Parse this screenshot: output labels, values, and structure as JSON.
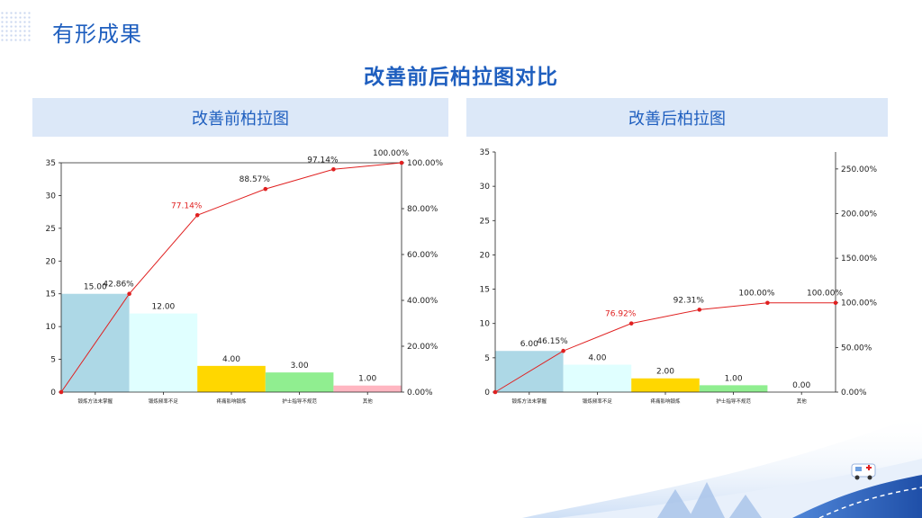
{
  "page": {
    "section_title": "有形成果",
    "main_title": "改善前后柏拉图对比"
  },
  "colors": {
    "accent": "#1f5fbf",
    "header_bg": "#dce8f8",
    "line": "#e02020",
    "highlight_label": "#e02020"
  },
  "chart_data": [
    {
      "type": "bar",
      "title": "改善前柏拉图",
      "categories": [
        "锻炼方法未掌握",
        "锻炼频率不足",
        "疼痛影响锻炼",
        "护士指导不规范",
        "其他"
      ],
      "values": [
        15,
        12,
        4,
        3,
        1
      ],
      "value_labels": [
        "15.00",
        "12.00",
        "4.00",
        "3.00",
        "1.00"
      ],
      "bar_colors": [
        "#add8e6",
        "#e0ffff",
        "#ffd700",
        "#90ee90",
        "#ffb6c1"
      ],
      "cumulative_percent": [
        42.86,
        77.14,
        88.57,
        97.14,
        100.0
      ],
      "cumulative_labels": [
        "42.86%",
        "77.14%",
        "88.57%",
        "97.14%",
        "100.00%"
      ],
      "highlight_index": 1,
      "ylim": [
        0,
        35
      ],
      "y_ticks": [
        "0",
        "5",
        "10",
        "15",
        "20",
        "25",
        "30",
        "35"
      ],
      "y2lim": [
        0,
        100
      ],
      "y2_ticks": [
        "0.00%",
        "20.00%",
        "40.00%",
        "60.00%",
        "80.00%",
        "100.00%"
      ],
      "xlabel": "",
      "ylabel": ""
    },
    {
      "type": "bar",
      "title": "改善后柏拉图",
      "categories": [
        "锻炼方法未掌握",
        "锻炼频率不足",
        "疼痛影响锻炼",
        "护士指导不规范",
        "其他"
      ],
      "values": [
        6,
        4,
        2,
        1,
        0
      ],
      "value_labels": [
        "6.00",
        "4.00",
        "2.00",
        "1.00",
        "0.00"
      ],
      "bar_colors": [
        "#add8e6",
        "#e0ffff",
        "#ffd700",
        "#90ee90",
        "#ffb6c1"
      ],
      "cumulative_percent": [
        46.15,
        76.92,
        92.31,
        100.0,
        100.0
      ],
      "cumulative_labels": [
        "46.15%",
        "76.92%",
        "92.31%",
        "100.00%",
        "100.00%"
      ],
      "highlight_index": 1,
      "ylim": [
        0,
        35
      ],
      "y_ticks": [
        "0",
        "5",
        "10",
        "15",
        "20",
        "25",
        "30",
        "35"
      ],
      "y2lim": [
        0,
        269
      ],
      "y2_ticks": [
        "0.00%",
        "50.00%",
        "100.00%",
        "150.00%",
        "200.00%",
        "250.00%"
      ],
      "xlabel": "",
      "ylabel": ""
    }
  ]
}
